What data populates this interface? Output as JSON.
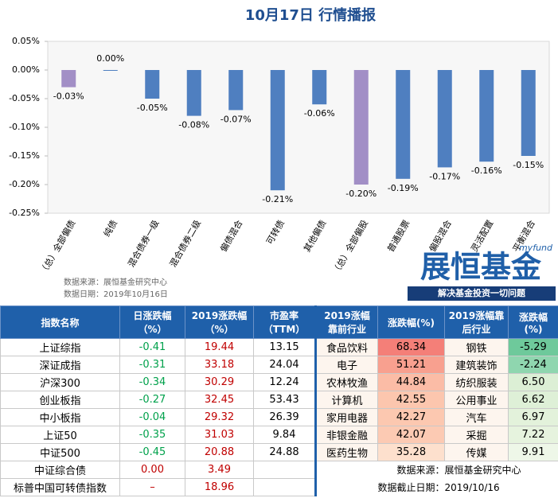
{
  "chart_data": {
    "type": "bar",
    "title": "10月17日 行情播报",
    "categories": [
      "（总）全部偏债",
      "纯债",
      "混合债券一级",
      "混合债券二级",
      "偏债混合",
      "可转债",
      "其他偏债",
      "（总）全部偏股",
      "普通股票",
      "偏股混合",
      "灵活配置",
      "平衡混合"
    ],
    "values": [
      -0.03,
      0.0,
      -0.05,
      -0.08,
      -0.07,
      -0.21,
      -0.06,
      -0.2,
      -0.19,
      -0.17,
      -0.16,
      -0.15
    ],
    "value_labels": [
      "-0.03%",
      "0.00%",
      "-0.05%",
      "-0.08%",
      "-0.07%",
      "-0.21%",
      "-0.06%",
      "-0.20%",
      "-0.19%",
      "-0.17%",
      "-0.16%",
      "-0.15%"
    ],
    "colors": [
      "#a28fc6",
      "#4f7fc0",
      "#4f7fc0",
      "#4f7fc0",
      "#4f7fc0",
      "#4f7fc0",
      "#4f7fc0",
      "#a28fc6",
      "#4f7fc0",
      "#4f7fc0",
      "#4f7fc0",
      "#4f7fc0"
    ],
    "ylim": [
      0.05,
      -0.25
    ],
    "yticks": [
      {
        "value": 0.05,
        "label": "0.05%"
      },
      {
        "value": 0,
        "label": "0.00%"
      },
      {
        "value": -0.05,
        "label": "-0.05%"
      },
      {
        "value": -0.1,
        "label": "-0.10%"
      },
      {
        "value": -0.15,
        "label": "-0.15%"
      },
      {
        "value": -0.2,
        "label": "-0.20%"
      },
      {
        "value": -0.25,
        "label": "-0.25%"
      }
    ],
    "grid": false,
    "source": "数据来源：展恒基金研究中心",
    "date": "数据日期：2019年10月16日"
  },
  "logo": {
    "small": "myfund",
    "name": "展恒基金",
    "slogan": "解决基金投资一切问题"
  },
  "table": {
    "headers": [
      "指数名称",
      "日涨跌幅（%）",
      "2019涨跌幅（%）",
      "市盈率（TTM）",
      "2019涨幅靠前行业",
      "涨跌幅(%)",
      "2019涨幅靠后行业",
      "涨跌幅(%)"
    ],
    "rows": [
      [
        "上证综指",
        "-0.41",
        "19.44",
        "13.15",
        "食品饮料",
        "68.34",
        "钢铁",
        "-5.29"
      ],
      [
        "深证成指",
        "-0.31",
        "33.18",
        "24.04",
        "电子",
        "51.21",
        "建筑装饰",
        "-2.24"
      ],
      [
        "沪深300",
        "-0.34",
        "30.29",
        "12.24",
        "农林牧渔",
        "44.84",
        "纺织服装",
        "6.50"
      ],
      [
        "创业板指",
        "-0.27",
        "32.45",
        "53.43",
        "计算机",
        "42.55",
        "公用事业",
        "6.62"
      ],
      [
        "中小板指",
        "-0.04",
        "29.32",
        "26.39",
        "家用电器",
        "42.27",
        "汽车",
        "6.97"
      ],
      [
        "上证50",
        "-0.35",
        "31.03",
        "9.84",
        "非银金融",
        "42.07",
        "采掘",
        "7.22"
      ],
      [
        "中证500",
        "-0.45",
        "20.88",
        "24.88",
        "医药生物",
        "35.28",
        "传媒",
        "9.91"
      ]
    ],
    "extra_rows": [
      [
        "中证综合债",
        "0.00",
        "3.49"
      ],
      [
        "标普中国可转债指数",
        "–",
        "18.96"
      ]
    ],
    "notes": [
      [
        "数据来源：",
        "展恒基金研究中心"
      ],
      [
        "数据截止日期：",
        "2019/10/16"
      ]
    ],
    "up_colors": [
      "#f47f78",
      "#f8a08f",
      "#fbbca6",
      "#fcc6ae",
      "#fcc8b0",
      "#fccab3",
      "#fde0cd"
    ],
    "down_colors": [
      "#6ec99b",
      "#8fd6af",
      "#dcefd5",
      "#def0d7",
      "#e3f2db",
      "#e6f3de",
      "#eef7e8"
    ]
  }
}
